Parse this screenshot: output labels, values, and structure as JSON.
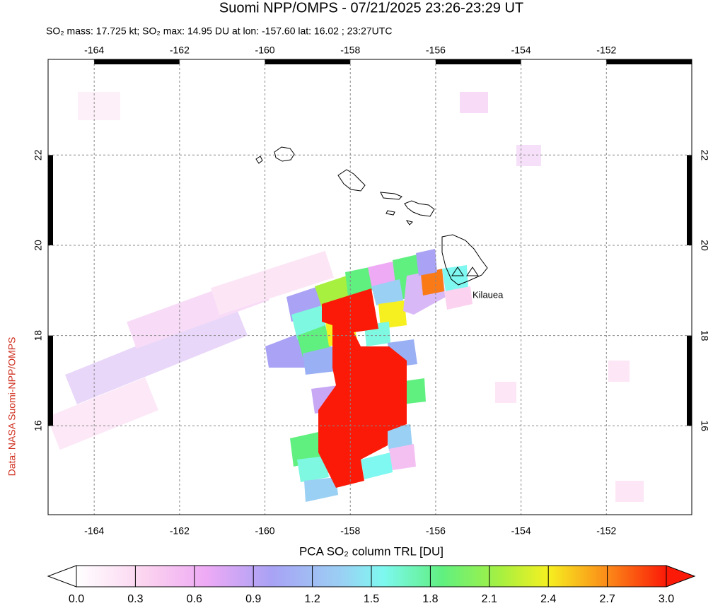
{
  "chart_data": {
    "type": "map",
    "title": "Suomi NPP/OMPS - 07/21/2025 23:26-23:29 UT",
    "subtitle": "SO₂ mass: 17.725 kt; SO₂ max: 14.95 DU at lon: -157.60 lat: 16.02 ; 23:27UTC",
    "annotation": "Kilauea",
    "source": "Data: NASA Suomi-NPP/OMPS",
    "xlim": [
      -165.08,
      -150.0
    ],
    "ylim": [
      14.03,
      24.12
    ],
    "xticks": [
      -164,
      -162,
      -160,
      -158,
      -156,
      -154,
      -152
    ],
    "yticks": [
      16,
      18,
      20,
      22
    ],
    "colorbar": {
      "label": "PCA SO₂ column TRL [DU]",
      "lim": [
        0,
        3
      ],
      "ticks": [
        {
          "value": 0,
          "label": "0.0"
        },
        0.3,
        0.6,
        0.9,
        1.2,
        1.5,
        1.8,
        2.1,
        2.4,
        2.7,
        {
          "value": 3,
          "label": "3.0"
        }
      ]
    }
  }
}
